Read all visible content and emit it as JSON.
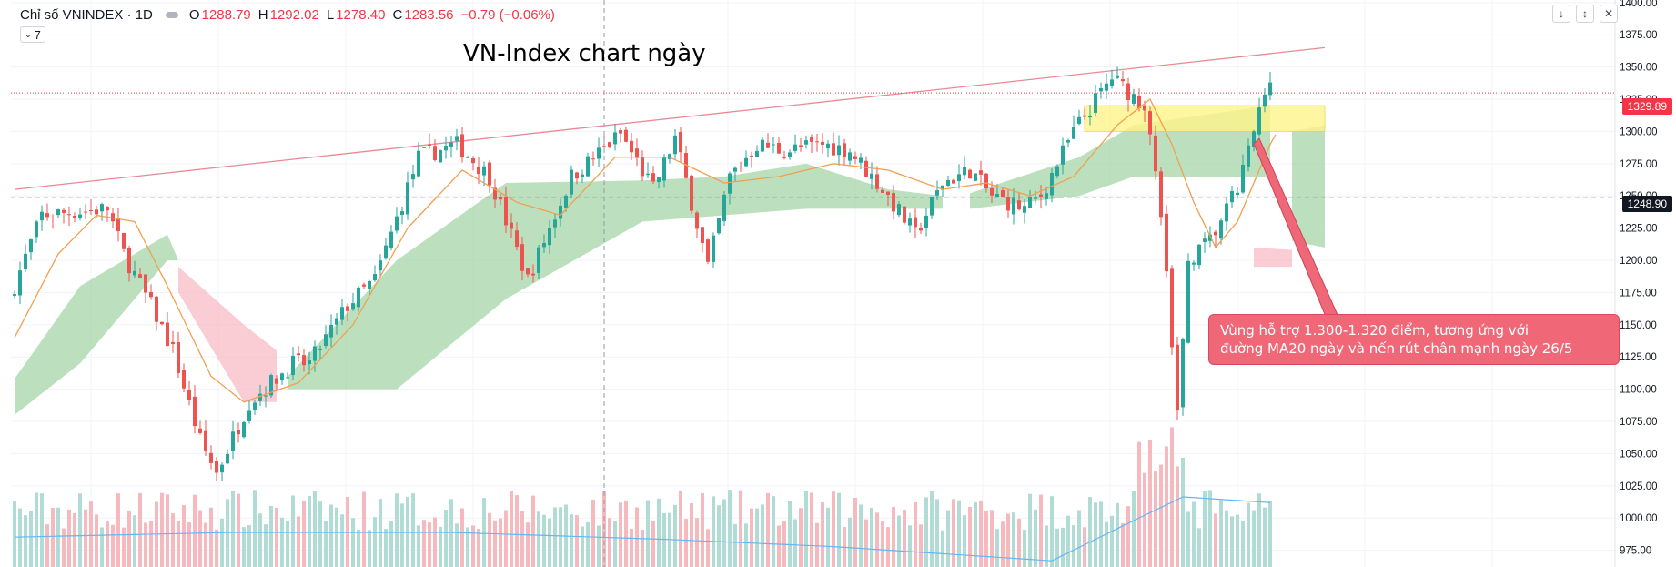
{
  "header": {
    "symbol": "Chỉ số VNINDEX · 1D",
    "o_label": "O",
    "o_value": "1288.79",
    "h_label": "H",
    "h_value": "1292.02",
    "l_label": "L",
    "l_value": "1278.40",
    "c_label": "C",
    "c_value": "1283.56",
    "change": "−0.79 (−0.06%)",
    "indicators_toggle": "7"
  },
  "toolbar": {
    "down_icon": "arrow-down-icon",
    "collapse_icon": "collapse-icon",
    "close_icon": "close-icon"
  },
  "chart_title": "VN-Index chart ngày",
  "callout": {
    "line1": "Vùng hỗ trợ 1.300-1.320 điểm, tương ứng với",
    "line2": "đường MA20 ngày và nến rút chân mạnh ngày 26/5"
  },
  "price_tags": {
    "last_price": "1329.89",
    "crosshair_price": "1248.90"
  },
  "colors": {
    "up": "#26a69a",
    "down": "#ef5350",
    "ma": "#f0a050",
    "cloud_green": "#a5d6a7",
    "cloud_red": "#f8bbc4",
    "trend": "#e88a96",
    "zone": "#fff48a",
    "volume_ma": "#64b5f6",
    "callout": "#f06878"
  },
  "chart_data": {
    "type": "candlestick",
    "title": "VN-Index chart ngày",
    "ylim": [
      962,
      1402
    ],
    "y_ticks": [
      1400,
      1375,
      1350,
      1325,
      1300,
      1275,
      1250,
      1225,
      1200,
      1175,
      1150,
      1125,
      1100,
      1075,
      1050,
      1025,
      1000,
      975
    ],
    "y_tick_labels": [
      "1400.00",
      "1375.00",
      "1350.00",
      "1325.00",
      "1300.00",
      "1275.00",
      "1250.00",
      "1225.00",
      "1200.00",
      "1175.00",
      "1150.00",
      "1125.00",
      "1100.00",
      "1075.00",
      "1050.00",
      "1025.00",
      "1000.00",
      "975.00"
    ],
    "n_bars": 231,
    "close_anchors": [
      [
        0,
        1170
      ],
      [
        6,
        1235
      ],
      [
        18,
        1240
      ],
      [
        21,
        1205
      ],
      [
        26,
        1165
      ],
      [
        30,
        1130
      ],
      [
        35,
        1060
      ],
      [
        38,
        1035
      ],
      [
        44,
        1090
      ],
      [
        52,
        1120
      ],
      [
        55,
        1120
      ],
      [
        62,
        1165
      ],
      [
        67,
        1185
      ],
      [
        75,
        1280
      ],
      [
        82,
        1290
      ],
      [
        88,
        1265
      ],
      [
        95,
        1185
      ],
      [
        103,
        1265
      ],
      [
        112,
        1298
      ],
      [
        118,
        1255
      ],
      [
        122,
        1295
      ],
      [
        128,
        1195
      ],
      [
        132,
        1265
      ],
      [
        137,
        1290
      ],
      [
        142,
        1285
      ],
      [
        149,
        1290
      ],
      [
        154,
        1285
      ],
      [
        160,
        1255
      ],
      [
        166,
        1220
      ],
      [
        171,
        1260
      ],
      [
        176,
        1270
      ],
      [
        180,
        1250
      ],
      [
        186,
        1240
      ],
      [
        189,
        1250
      ],
      [
        195,
        1300
      ],
      [
        202,
        1342
      ],
      [
        208,
        1320
      ],
      [
        211,
        1240
      ],
      [
        212,
        1185
      ],
      [
        213,
        1130
      ],
      [
        214,
        1080
      ],
      [
        216,
        1200
      ],
      [
        220,
        1215
      ],
      [
        225,
        1255
      ],
      [
        228,
        1300
      ],
      [
        231,
        1345
      ],
      [
        234,
        1340
      ]
    ],
    "ma_period": 20,
    "ma_anchors": [
      [
        0,
        1140
      ],
      [
        8,
        1205
      ],
      [
        15,
        1235
      ],
      [
        22,
        1230
      ],
      [
        28,
        1180
      ],
      [
        36,
        1110
      ],
      [
        42,
        1090
      ],
      [
        52,
        1105
      ],
      [
        62,
        1150
      ],
      [
        72,
        1225
      ],
      [
        82,
        1270
      ],
      [
        92,
        1245
      ],
      [
        100,
        1235
      ],
      [
        110,
        1280
      ],
      [
        120,
        1280
      ],
      [
        130,
        1260
      ],
      [
        140,
        1265
      ],
      [
        150,
        1275
      ],
      [
        160,
        1270
      ],
      [
        170,
        1255
      ],
      [
        178,
        1260
      ],
      [
        186,
        1250
      ],
      [
        194,
        1265
      ],
      [
        202,
        1305
      ],
      [
        208,
        1325
      ],
      [
        212,
        1290
      ],
      [
        216,
        1245
      ],
      [
        220,
        1210
      ],
      [
        224,
        1230
      ],
      [
        230,
        1290
      ],
      [
        234,
        1320
      ]
    ],
    "cloud_segments": [
      {
        "color": "green",
        "top": [
          [
            0,
            1108
          ],
          [
            12,
            1180
          ],
          [
            28,
            1220
          ],
          [
            30,
            1200
          ]
        ],
        "bottom": [
          [
            0,
            1080
          ],
          [
            12,
            1120
          ],
          [
            28,
            1200
          ],
          [
            30,
            1200
          ]
        ]
      },
      {
        "color": "red",
        "top": [
          [
            30,
            1195
          ],
          [
            42,
            1150
          ],
          [
            48,
            1130
          ]
        ],
        "bottom": [
          [
            30,
            1175
          ],
          [
            42,
            1090
          ],
          [
            48,
            1090
          ]
        ]
      },
      {
        "color": "green",
        "top": [
          [
            50,
            1110
          ],
          [
            70,
            1200
          ],
          [
            90,
            1260
          ],
          [
            115,
            1262
          ],
          [
            130,
            1265
          ],
          [
            145,
            1275
          ],
          [
            160,
            1255
          ],
          [
            170,
            1250
          ]
        ],
        "bottom": [
          [
            50,
            1100
          ],
          [
            70,
            1100
          ],
          [
            90,
            1170
          ],
          [
            115,
            1230
          ],
          [
            130,
            1235
          ],
          [
            145,
            1240
          ],
          [
            160,
            1240
          ],
          [
            170,
            1240
          ]
        ]
      },
      {
        "color": "green",
        "top": [
          [
            175,
            1252
          ],
          [
            195,
            1280
          ],
          [
            205,
            1305
          ],
          [
            230,
            1320
          ]
        ],
        "bottom": [
          [
            175,
            1240
          ],
          [
            195,
            1250
          ],
          [
            205,
            1265
          ],
          [
            230,
            1265
          ]
        ]
      },
      {
        "color": "green",
        "top": [
          [
            234,
            1300
          ],
          [
            240,
            1305
          ]
        ],
        "bottom": [
          [
            234,
            1215
          ],
          [
            240,
            1210
          ]
        ]
      },
      {
        "color": "red",
        "top": [
          [
            227,
            1210
          ],
          [
            234,
            1208
          ]
        ],
        "bottom": [
          [
            227,
            1195
          ],
          [
            234,
            1195
          ]
        ]
      }
    ],
    "trendline": [
      [
        0,
        1255
      ],
      [
        240,
        1365
      ]
    ],
    "support_zone": [
      1300,
      1320
    ],
    "support_zone_bars": [
      196,
      240
    ],
    "last_price": 1329.89,
    "crosshair_price": 1248.9,
    "volume_ma_anchors": [
      [
        0,
        0.28
      ],
      [
        40,
        0.3
      ],
      [
        80,
        0.3
      ],
      [
        120,
        0.27
      ],
      [
        150,
        0.24
      ],
      [
        190,
        0.18
      ],
      [
        205,
        0.35
      ],
      [
        214,
        0.45
      ],
      [
        234,
        0.42
      ]
    ]
  }
}
